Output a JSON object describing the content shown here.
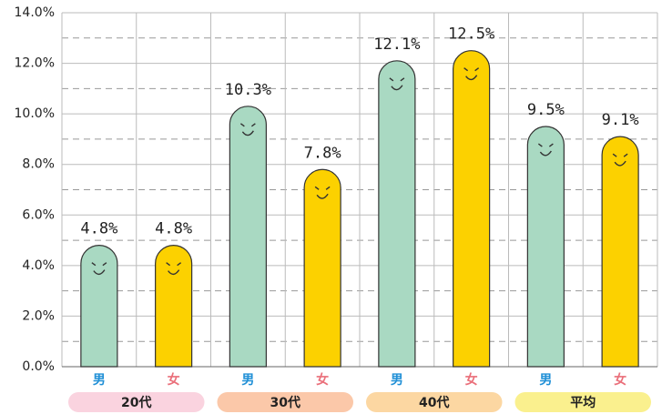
{
  "chart_data": {
    "type": "bar",
    "categories": [
      "20代",
      "30代",
      "40代",
      "平均"
    ],
    "category_colors": [
      "#fad3df",
      "#fbc8a9",
      "#fcd7a2",
      "#faf08e"
    ],
    "series": [
      {
        "name": "男",
        "color": "#a9d9c2",
        "label_color": "#1f8fd6",
        "values": [
          4.8,
          10.3,
          12.1,
          9.5
        ],
        "value_labels": [
          "4.8%",
          "10.3%",
          "12.1%",
          "9.5%"
        ]
      },
      {
        "name": "女",
        "color": "#fcd100",
        "label_color": "#ea6f7a",
        "values": [
          4.8,
          7.8,
          12.5,
          9.1
        ],
        "value_labels": [
          "4.8%",
          "7.8%",
          "12.5%",
          "9.1%"
        ]
      }
    ],
    "ylim": [
      0,
      14
    ],
    "yticks": [
      {
        "value": 0,
        "label": "0.0%"
      },
      {
        "value": 2,
        "label": "2.0%"
      },
      {
        "value": 4,
        "label": "4.0%"
      },
      {
        "value": 6,
        "label": "6.0%"
      },
      {
        "value": 8,
        "label": "8.0%"
      },
      {
        "value": 10,
        "label": "10.0%"
      },
      {
        "value": 12,
        "label": "12.0%"
      },
      {
        "value": 14,
        "label": "14.0%"
      }
    ],
    "minor_yticks": [
      1,
      3,
      5,
      7,
      9,
      11,
      13
    ],
    "grid": true
  }
}
